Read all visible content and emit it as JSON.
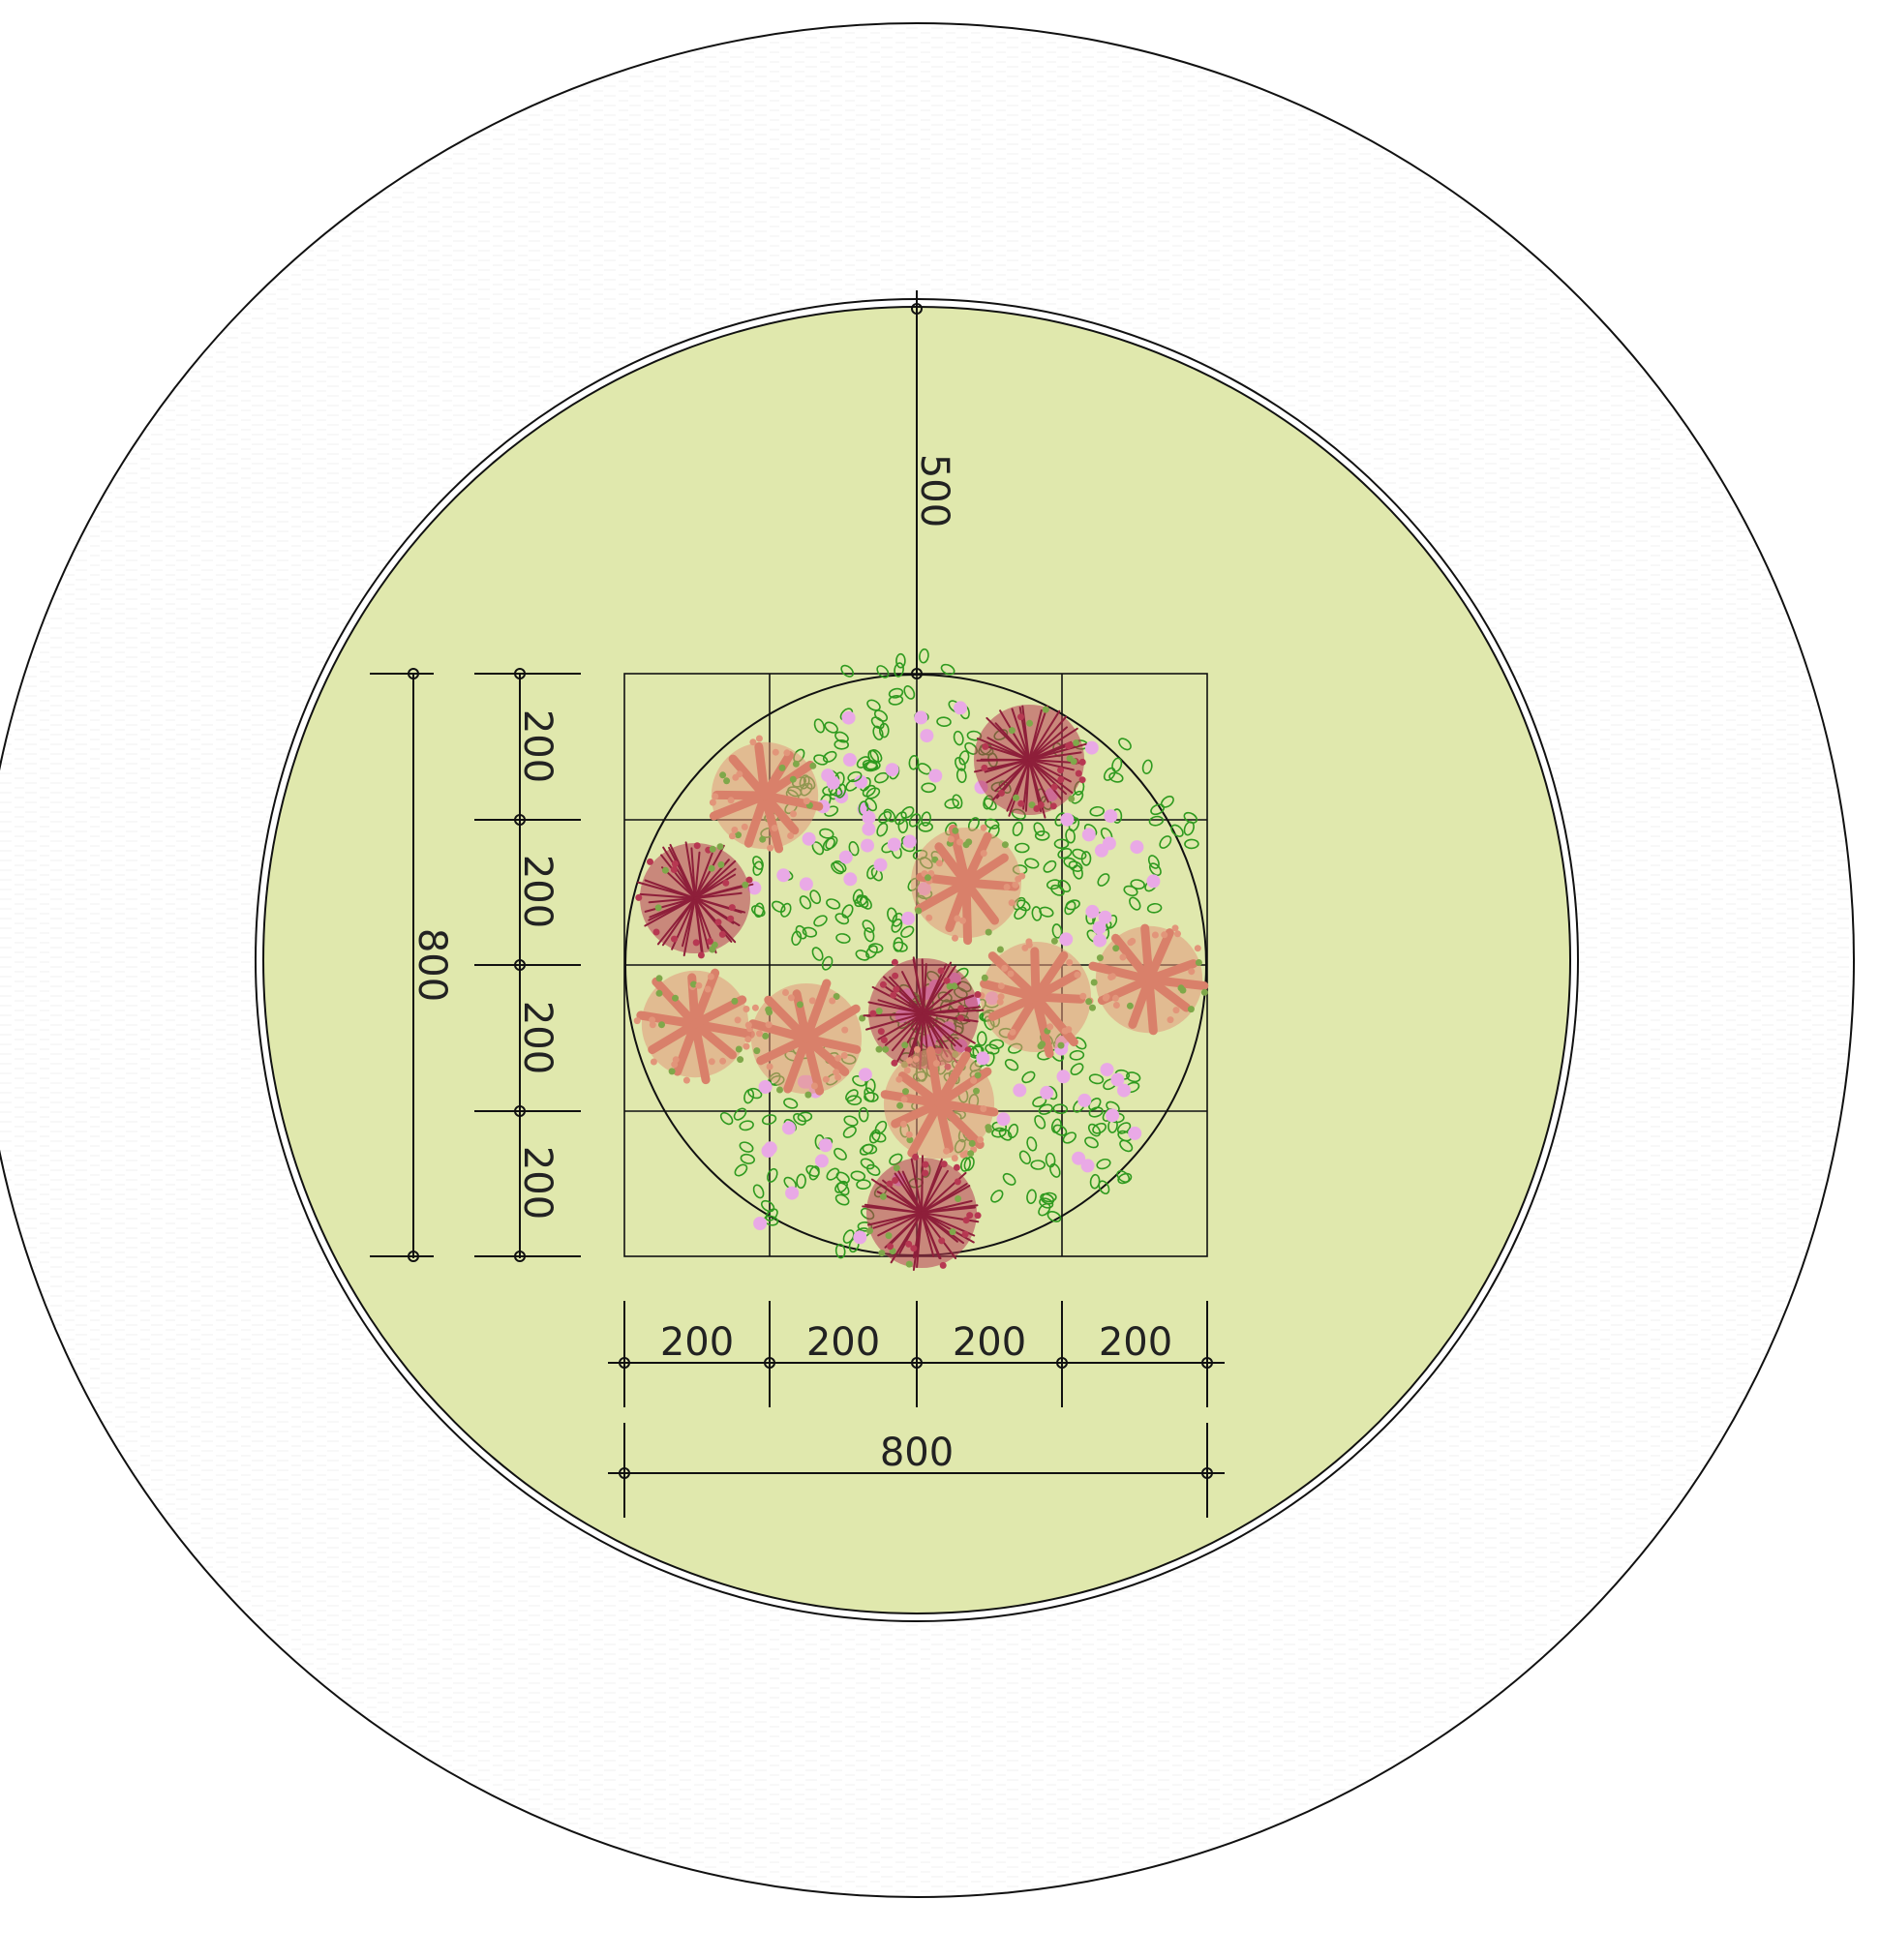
{
  "plan": {
    "colors": {
      "background": "#ffffff",
      "lawn": "#e0e8ad",
      "outline": "#111111",
      "shrub_green": "#2f9a1f",
      "flower_pink": "#e9a9e6",
      "tree_salmon": "#e2957a",
      "tree_red": "#b73852"
    },
    "dimensions": {
      "radius_label": "500",
      "vertical_segments": [
        "200",
        "200",
        "200",
        "200"
      ],
      "vertical_total": "800",
      "horizontal_segments": [
        "200",
        "200",
        "200",
        "200"
      ],
      "horizontal_total": "800"
    },
    "planting": {
      "salmon_trees": 7,
      "red_trees": 4,
      "shrub_clusters": 4
    }
  }
}
